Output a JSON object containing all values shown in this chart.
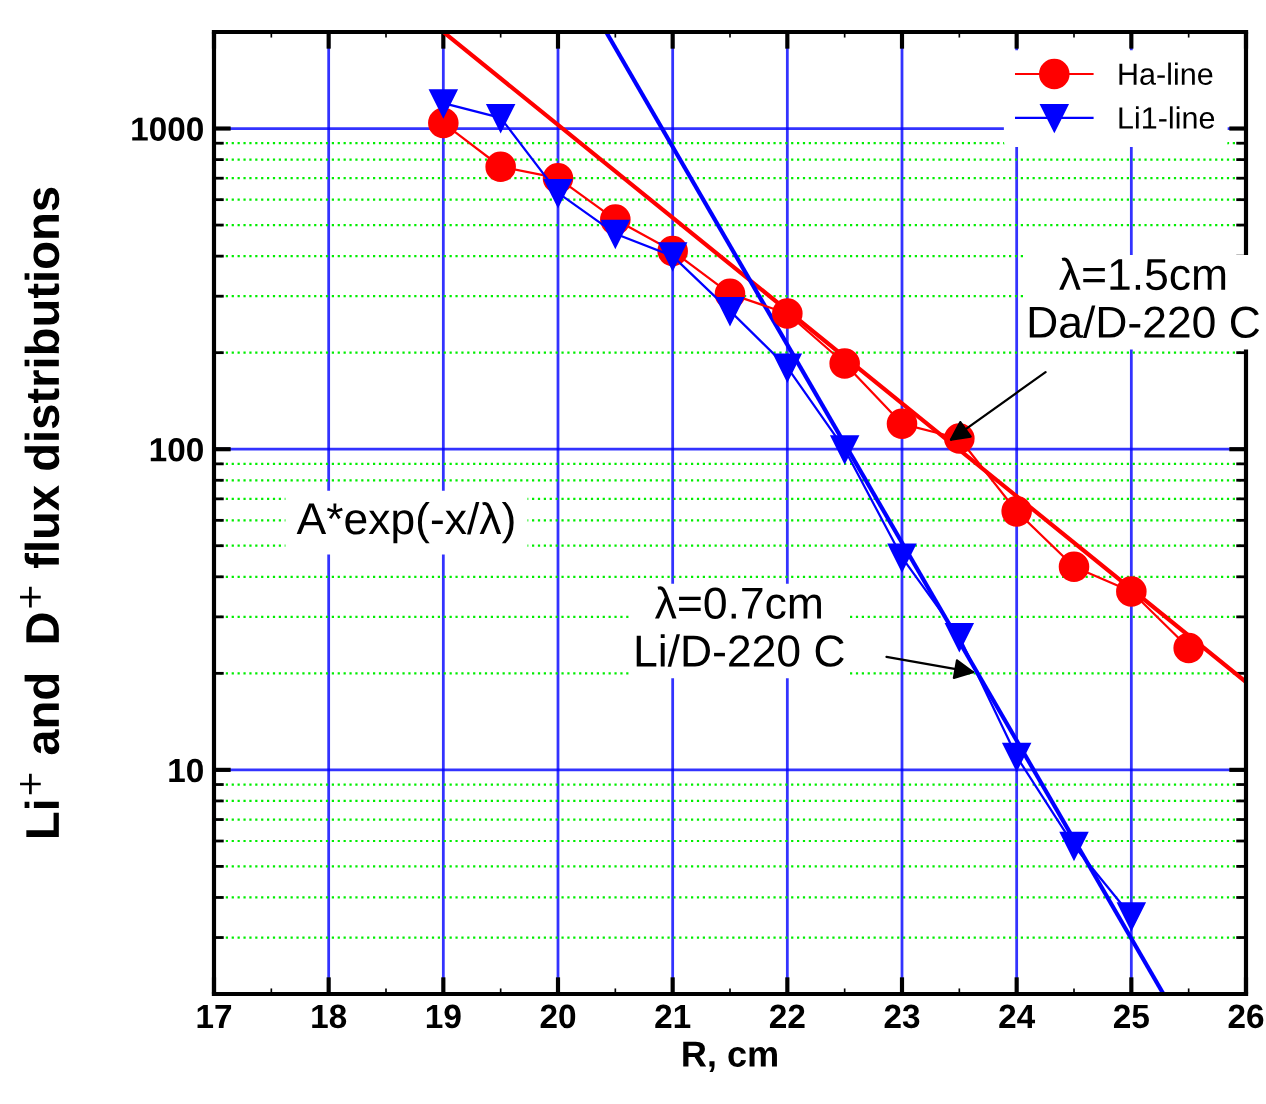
{
  "chart_data": {
    "type": "line",
    "xlabel": "R, cm",
    "ylabel": "Li$^{+}$ and  D$^{+}$ flux distributions",
    "log": "y",
    "xlim": [
      17,
      26
    ],
    "ylim": [
      2,
      2000
    ],
    "xticks": [
      17,
      18,
      19,
      20,
      21,
      22,
      23,
      24,
      25,
      26
    ],
    "yticks": [
      {
        "value": 3,
        "label": null
      },
      {
        "value": 4,
        "label": null
      },
      {
        "value": 5,
        "label": null
      },
      {
        "value": 6,
        "label": null
      },
      {
        "value": 7,
        "label": null
      },
      {
        "value": 8,
        "label": null
      },
      {
        "value": 9,
        "label": null
      },
      10,
      {
        "value": 20,
        "label": null
      },
      {
        "value": 30,
        "label": null
      },
      {
        "value": 40,
        "label": null
      },
      {
        "value": 50,
        "label": null
      },
      {
        "value": 60,
        "label": null
      },
      {
        "value": 70,
        "label": null
      },
      {
        "value": 80,
        "label": null
      },
      {
        "value": 90,
        "label": null
      },
      100,
      {
        "value": 200,
        "label": null
      },
      {
        "value": 300,
        "label": null
      },
      {
        "value": 400,
        "label": null
      },
      {
        "value": 500,
        "label": null
      },
      {
        "value": 600,
        "label": null
      },
      {
        "value": 700,
        "label": null
      },
      {
        "value": 800,
        "label": null
      },
      {
        "value": 900,
        "label": null
      },
      1000
    ],
    "grid": true,
    "legend": "top right",
    "series": [
      {
        "name": "Ha-line",
        "color": "#ff0000",
        "marker": "circle",
        "x": [
          19,
          19.5,
          20,
          20.5,
          21,
          21.5,
          22,
          22.5,
          23,
          23.5,
          24,
          24.5,
          25,
          25.5
        ],
        "values": [
          1040,
          760,
          700,
          520,
          415,
          305,
          265,
          185,
          120,
          108,
          64,
          43,
          36,
          24
        ]
      },
      {
        "name": "Li1-line",
        "color": "#0000ff",
        "marker": "triangle",
        "x": [
          19,
          19.5,
          20,
          20.5,
          21,
          21.5,
          22,
          22.5,
          23,
          23.5,
          24,
          24.5,
          25
        ],
        "values": [
          1200,
          1080,
          630,
          470,
          400,
          270,
          180,
          100,
          46,
          26,
          11,
          5.8,
          3.5
        ]
      },
      {
        "color": "#ff0000",
        "marker": "none",
        "x": [
          19,
          26
        ],
        "values": [
          2000,
          18.8
        ]
      },
      {
        "color": "#0000ff",
        "marker": "none",
        "x": [
          20.42,
          25.28
        ],
        "values": [
          2000,
          2
        ]
      }
    ],
    "annotations": [
      {
        "text": "λ=1.5cm\nDa/D-220 C",
        "x": 23.41,
        "y": 106
      },
      {
        "text": "λ=0.7cm\nLi/D-220 C",
        "x": 23.64,
        "y": 20.1
      },
      "A*exp(-x/λ)"
    ]
  }
}
